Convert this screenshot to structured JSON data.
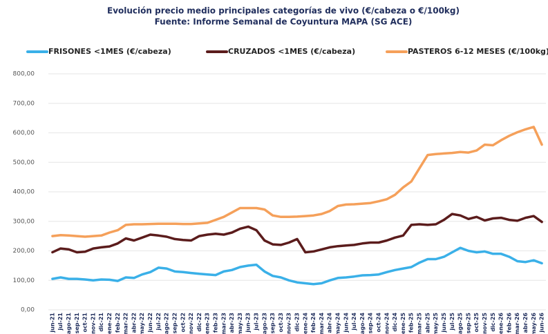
{
  "chart_data": {
    "type": "line",
    "title": "Evolución precio medio principales categorías de vivo (€/cabeza o €/100kg)",
    "subtitle": "Fuente: Informe Semanal de Coyuntura MAPA (SG ACE)",
    "categories": [
      "jun-21",
      "jul-21",
      "ago-21",
      "sep-21",
      "oct-21",
      "nov-21",
      "dic-21",
      "ene-22",
      "feb-22",
      "mar-22",
      "abr-22",
      "may-22",
      "jun-22",
      "jul-22",
      "ago-22",
      "sep-22",
      "oct-22",
      "nov-22",
      "dic-22",
      "ene-23",
      "feb-23",
      "mar-23",
      "abr-23",
      "may-23",
      "jun-23",
      "jul-23",
      "ago-23",
      "sep-23",
      "oct-23",
      "nov-23",
      "dic-23",
      "ene-24",
      "feb-24",
      "mar-24",
      "abr-24",
      "may-24",
      "jun-24",
      "jul-24",
      "ago-24",
      "sep-24",
      "oct-24",
      "nov-24",
      "dic-24",
      "ene-25",
      "feb-25",
      "mar-25",
      "abr-25",
      "may-25",
      "jun-25",
      "jul-25",
      "ago-25",
      "sep-25",
      "oct-25",
      "nov-25",
      "dic-25",
      "ene-26",
      "feb-26",
      "mar-26",
      "abr-26",
      "may-26",
      "jun-26"
    ],
    "series": [
      {
        "name": "FRISONES <1MES (€/cabeza)",
        "color": "#3ab0e8",
        "values": [
          105,
          110,
          105,
          105,
          103,
          100,
          103,
          102,
          98,
          110,
          108,
          120,
          128,
          143,
          140,
          130,
          128,
          125,
          122,
          120,
          118,
          130,
          135,
          145,
          150,
          153,
          130,
          115,
          110,
          100,
          93,
          90,
          87,
          90,
          100,
          108,
          110,
          113,
          117,
          118,
          120,
          128,
          135,
          140,
          145,
          160,
          172,
          172,
          180,
          195,
          210,
          200,
          195,
          198,
          190,
          190,
          180,
          165,
          162,
          168,
          158
        ]
      },
      {
        "name": "CRUZADOS <1MES (€/cabeza)",
        "color": "#5b1c1c",
        "values": [
          195,
          208,
          205,
          195,
          197,
          208,
          212,
          215,
          225,
          242,
          235,
          245,
          255,
          252,
          248,
          240,
          237,
          235,
          250,
          255,
          258,
          255,
          262,
          275,
          282,
          270,
          235,
          222,
          220,
          228,
          240,
          195,
          198,
          205,
          212,
          216,
          218,
          220,
          225,
          228,
          228,
          235,
          245,
          252,
          288,
          290,
          288,
          290,
          305,
          325,
          320,
          308,
          315,
          303,
          310,
          312,
          305,
          302,
          312,
          318,
          298
        ]
      },
      {
        "name": "PASTEROS 6-12 MESES (€/100kg)",
        "color": "#f5a05a",
        "values": [
          250,
          253,
          252,
          250,
          248,
          250,
          252,
          262,
          270,
          288,
          290,
          290,
          291,
          292,
          292,
          292,
          291,
          291,
          293,
          295,
          305,
          315,
          330,
          345,
          345,
          345,
          340,
          320,
          315,
          315,
          316,
          318,
          320,
          325,
          335,
          352,
          357,
          358,
          360,
          362,
          368,
          375,
          390,
          415,
          435,
          480,
          525,
          528,
          530,
          532,
          535,
          533,
          540,
          560,
          558,
          575,
          590,
          602,
          612,
          620,
          560
        ]
      }
    ],
    "ylim": [
      0,
      800
    ],
    "yticks": [
      {
        "value": 0,
        "label": "0,00"
      },
      {
        "value": 100,
        "label": "100,00"
      },
      {
        "value": 200,
        "label": "200,00"
      },
      {
        "value": 300,
        "label": "300,00"
      },
      {
        "value": 400,
        "label": "400,00"
      },
      {
        "value": 500,
        "label": "500,00"
      },
      {
        "value": 600,
        "label": "600,00"
      },
      {
        "value": 700,
        "label": "700,00"
      },
      {
        "value": 800,
        "label": "800,00"
      }
    ],
    "grid": true,
    "legend": "top"
  }
}
